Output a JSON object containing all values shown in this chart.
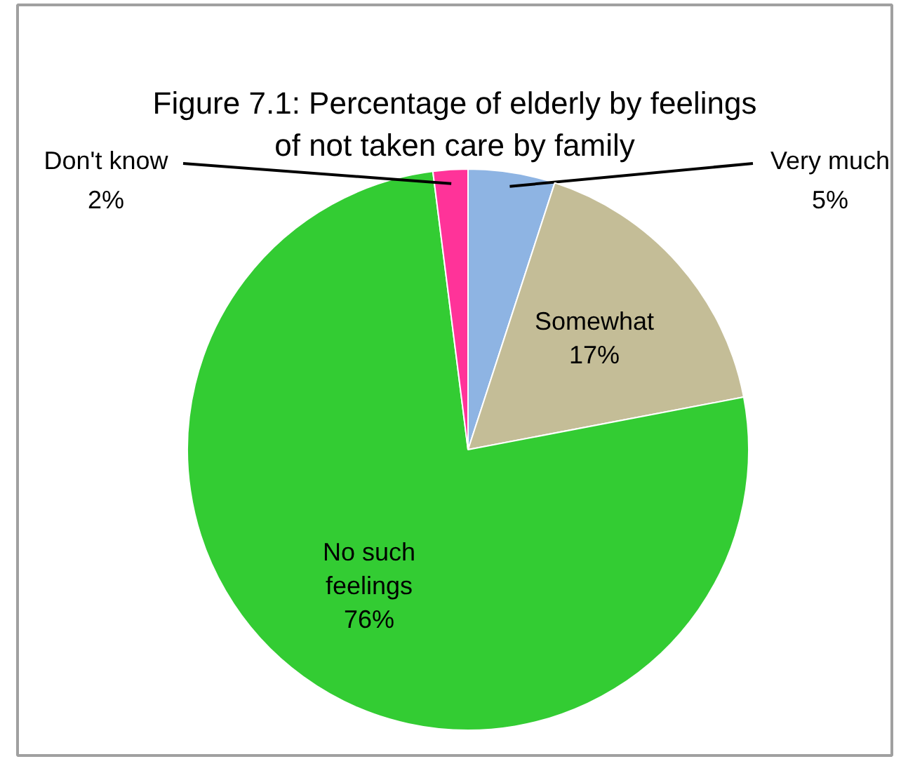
{
  "chart_data": {
    "type": "pie",
    "title": "Figure 7.1: Percentage of elderly by feelings of not taken care by family",
    "categories": [
      "Very much",
      "Somewhat",
      "No such feelings",
      "Don't know"
    ],
    "values": [
      5,
      17,
      76,
      2
    ],
    "value_labels": [
      "5%",
      "17%",
      "76%",
      "2%"
    ],
    "colors": [
      "#8eb4e3",
      "#c4bd97",
      "#33cc33",
      "#ff3399"
    ]
  }
}
